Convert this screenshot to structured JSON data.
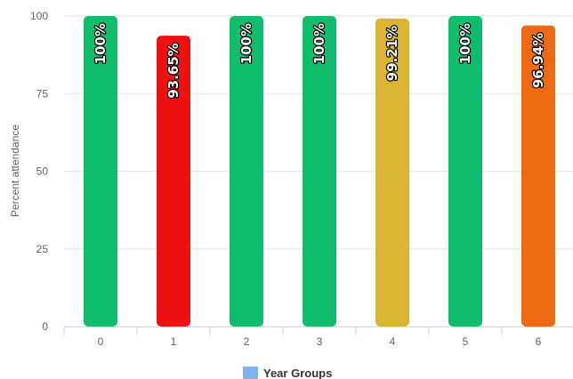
{
  "chart_data": {
    "type": "bar",
    "categories": [
      "0",
      "1",
      "2",
      "3",
      "4",
      "5",
      "6"
    ],
    "values": [
      100,
      93.65,
      100,
      100,
      99.21,
      100,
      96.94
    ],
    "data_labels": [
      "100%",
      "93.65%",
      "100%",
      "100%",
      "99.21%",
      "100%",
      "96.94%"
    ],
    "bar_colors": [
      "#10bd6c",
      "#ee1111",
      "#10bd6c",
      "#10bd6c",
      "#d9b632",
      "#10bd6c",
      "#ee6a10"
    ],
    "ylabel": "Percent attendance",
    "xlabel": "",
    "ylim": [
      0,
      100
    ],
    "yticks": [
      "0",
      "25",
      "50",
      "75",
      "100"
    ],
    "grid": true,
    "legend": {
      "position": "bottom-center",
      "label": "Year Groups",
      "color": "#7cb5ec"
    }
  }
}
